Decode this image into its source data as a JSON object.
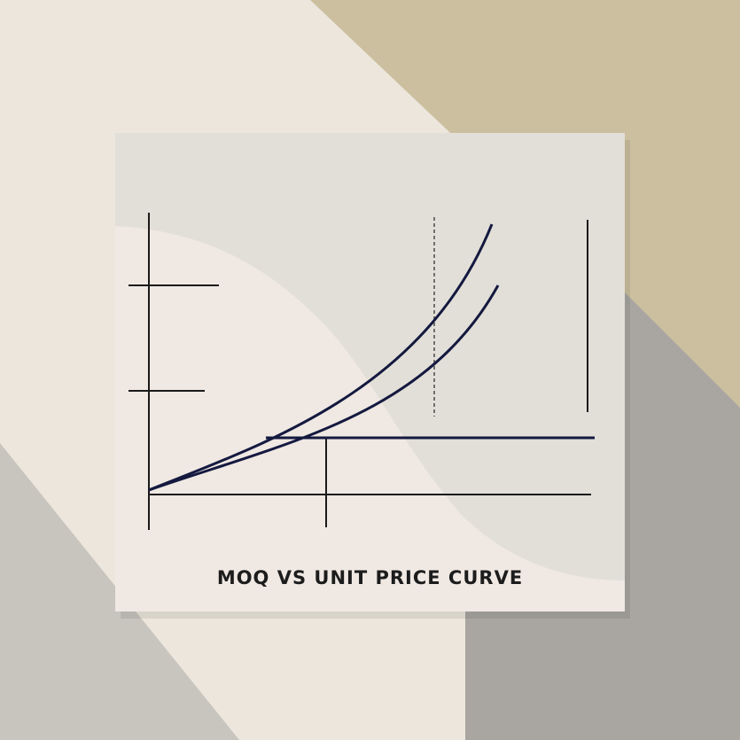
{
  "illustration": {
    "title": "MOQ VS UNIT PRICE CURVE",
    "colors": {
      "background_cream": "#ece6dc",
      "background_tan": "#cbbf9f",
      "background_grey": "#a9a6a1",
      "card": "#e2dfd8",
      "card_blob": "#efe8e3",
      "line_navy": "#14193f",
      "axis": "#1a1a1a"
    }
  }
}
